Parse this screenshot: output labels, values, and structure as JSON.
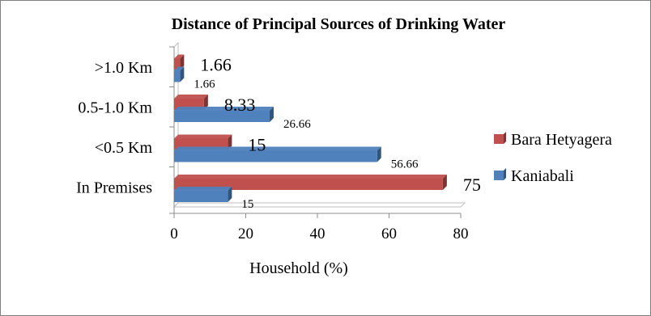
{
  "chart_data": {
    "type": "bar",
    "orientation": "horizontal",
    "style": "3d",
    "title": "Distance of Principal Sources of Drinking Water",
    "xlabel": "Household (%)",
    "ylabel": "",
    "categories": [
      "In Premises",
      "<0.5 Km",
      "0.5-1.0 Km",
      ">1.0 Km"
    ],
    "series": [
      {
        "name": "Kaniabali",
        "values": [
          15,
          56.66,
          26.66,
          1.66
        ],
        "color": "#4f81bd"
      },
      {
        "name": "Bara Hetyagera",
        "values": [
          75,
          15,
          8.33,
          1.66
        ],
        "color": "#c0504d"
      }
    ],
    "xlim": [
      0,
      80
    ],
    "xticks": [
      0,
      20,
      40,
      60,
      80
    ],
    "legend": "right",
    "grid": false
  }
}
